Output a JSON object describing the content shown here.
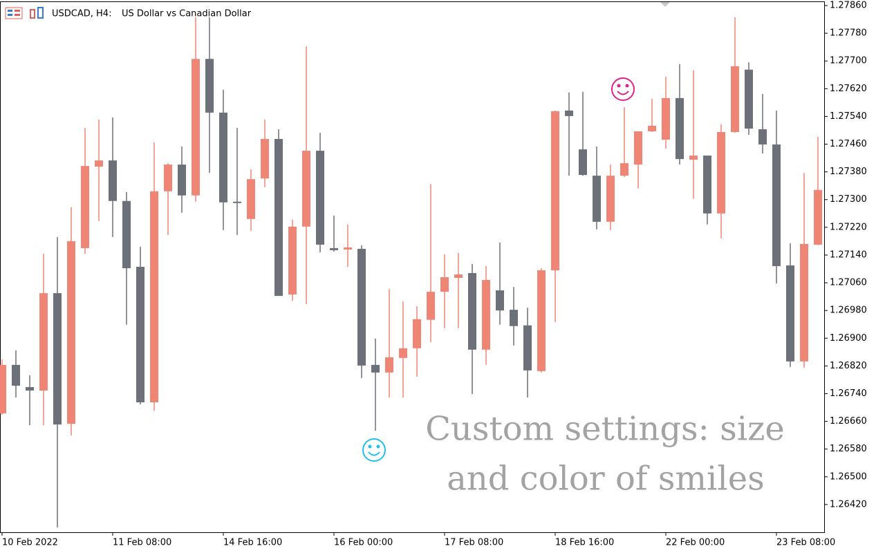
{
  "chart_data": {
    "type": "candlestick",
    "symbol": "USDCAD, H4:",
    "title": "US Dollar vs Canadian Dollar",
    "annotation": [
      "Custom settings: size",
      "and color of smiles"
    ],
    "categories": [
      "10 Feb 2022",
      null,
      null,
      null,
      null,
      null,
      null,
      null,
      "11 Feb 08:00",
      null,
      null,
      null,
      null,
      null,
      null,
      null,
      "14 Feb 16:00",
      null,
      null,
      null,
      null,
      null,
      null,
      null,
      "16 Feb 00:00",
      null,
      null,
      null,
      null,
      null,
      null,
      null,
      "17 Feb 08:00",
      null,
      null,
      null,
      null,
      null,
      null,
      null,
      "18 Feb 16:00",
      null,
      null,
      null,
      null,
      null,
      null,
      null,
      "22 Feb 00:00",
      null,
      null,
      null,
      null,
      null,
      null,
      null,
      "23 Feb 08:00",
      null,
      null,
      null
    ],
    "open": [
      1.26683,
      1.26823,
      1.26759,
      1.26749,
      1.2703,
      1.26653,
      1.2716,
      1.27395,
      1.27413,
      1.27296,
      1.27106,
      1.26715,
      1.27324,
      1.27401,
      1.27312,
      1.27706,
      1.27551,
      1.27294,
      1.27244,
      1.27361,
      1.27475,
      1.27026,
      1.27222,
      1.27441,
      1.2716,
      1.27156,
      1.27158,
      1.26823,
      1.26801,
      1.26843,
      1.26871,
      1.26953,
      1.27034,
      1.27074,
      1.27088,
      1.26867,
      1.27038,
      1.26982,
      1.26937,
      1.26805,
      1.27096,
      1.27557,
      1.27445,
      1.27369,
      1.27236,
      1.27369,
      1.27401,
      1.27497,
      1.27473,
      1.27593,
      1.27415,
      1.27427,
      1.2726,
      1.27495,
      1.27675,
      1.27503,
      1.27459,
      1.2711,
      1.26833,
      1.2717
    ],
    "high": [
      1.26839,
      1.26865,
      1.26793,
      1.27144,
      1.27192,
      1.27278,
      1.27507,
      1.27531,
      1.27537,
      1.27322,
      1.27164,
      1.27465,
      1.27405,
      1.27453,
      1.27826,
      1.27826,
      1.27617,
      1.27507,
      1.27387,
      1.27531,
      1.27503,
      1.27242,
      1.27742,
      1.27493,
      1.27254,
      1.27228,
      1.27168,
      1.26899,
      1.27042,
      1.27006,
      1.26992,
      1.27345,
      1.27142,
      1.27146,
      1.27114,
      1.27108,
      1.27176,
      1.27048,
      1.26988,
      1.27102,
      1.27557,
      1.27609,
      1.27611,
      1.27453,
      1.27401,
      1.27567,
      1.27497,
      1.27591,
      1.27655,
      1.27691,
      1.27673,
      1.27427,
      1.27517,
      1.27826,
      1.27696,
      1.27605,
      1.27557,
      1.27174,
      1.27377,
      1.27481
    ],
    "low": [
      1.26679,
      1.26729,
      1.26649,
      1.26649,
      1.26354,
      1.26619,
      1.27144,
      1.27238,
      1.27192,
      1.26939,
      1.26709,
      1.26691,
      1.27198,
      1.27262,
      1.27294,
      1.27377,
      1.27212,
      1.27198,
      1.2721,
      1.27336,
      1.27022,
      1.27008,
      1.26998,
      1.27148,
      1.2715,
      1.27106,
      1.26785,
      1.26633,
      1.26729,
      1.26729,
      1.26789,
      1.26889,
      1.26929,
      1.26929,
      1.26739,
      1.26823,
      1.26939,
      1.26879,
      1.26729,
      1.26801,
      1.26947,
      1.27369,
      1.27369,
      1.27214,
      1.27212,
      1.27365,
      1.27332,
      1.27495,
      1.27447,
      1.27401,
      1.27302,
      1.27228,
      1.27188,
      1.27493,
      1.27487,
      1.27433,
      1.27058,
      1.26817,
      1.26815,
      1.27168
    ],
    "close": [
      1.26823,
      1.26763,
      1.26749,
      1.2703,
      1.26651,
      1.2718,
      1.27397,
      1.27413,
      1.27296,
      1.27102,
      1.26715,
      1.27324,
      1.27401,
      1.27312,
      1.27706,
      1.27551,
      1.27292,
      1.2729,
      1.27359,
      1.27475,
      1.27022,
      1.27222,
      1.27441,
      1.2717,
      1.27154,
      1.27162,
      1.26821,
      1.26801,
      1.26845,
      1.26871,
      1.26955,
      1.27034,
      1.27076,
      1.27084,
      1.26867,
      1.27068,
      1.2698,
      1.26935,
      1.26807,
      1.27096,
      1.27555,
      1.27541,
      1.27371,
      1.27236,
      1.27369,
      1.27405,
      1.27497,
      1.27513,
      1.27593,
      1.27417,
      1.27427,
      1.2726,
      1.27495,
      1.27685,
      1.27505,
      1.27459,
      1.27108,
      1.26833,
      1.27172,
      1.27328
    ],
    "up_color": "#ef8574",
    "down_color": "#6b7079",
    "ylim": [
      1.2634,
      1.27872
    ],
    "yticks": [
      {
        "value": 1.2786,
        "label": "1.27860"
      },
      {
        "value": 1.2778,
        "label": "1.27780"
      },
      {
        "value": 1.277,
        "label": "1.27700"
      },
      {
        "value": 1.2762,
        "label": "1.27620"
      },
      {
        "value": 1.2754,
        "label": "1.27540"
      },
      {
        "value": 1.2746,
        "label": "1.27460"
      },
      {
        "value": 1.2738,
        "label": "1.27380"
      },
      {
        "value": 1.273,
        "label": "1.27300"
      },
      {
        "value": 1.2722,
        "label": "1.27220"
      },
      {
        "value": 1.2714,
        "label": "1.27140"
      },
      {
        "value": 1.2706,
        "label": "1.27060"
      },
      {
        "value": 1.2698,
        "label": "1.26980"
      },
      {
        "value": 1.269,
        "label": "1.26900"
      },
      {
        "value": 1.2682,
        "label": "1.26820"
      },
      {
        "value": 1.2674,
        "label": "1.26740"
      },
      {
        "value": 1.2666,
        "label": "1.26660"
      },
      {
        "value": 1.2658,
        "label": "1.26580"
      },
      {
        "value": 1.265,
        "label": "1.26500"
      },
      {
        "value": 1.2642,
        "label": "1.26420"
      }
    ],
    "grid": false
  }
}
